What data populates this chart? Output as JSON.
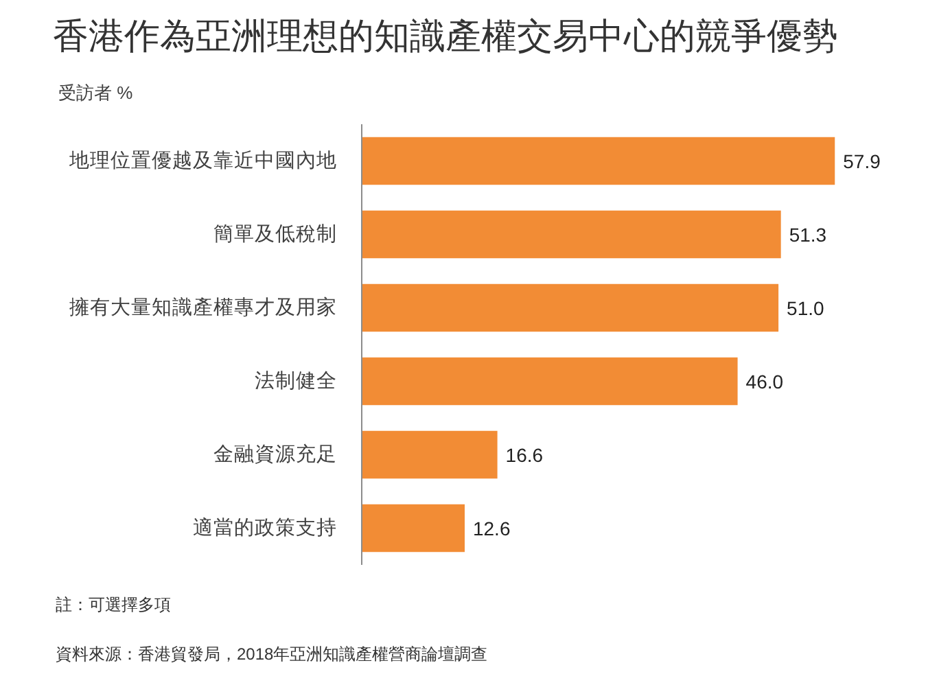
{
  "chart_data": {
    "type": "bar",
    "orientation": "horizontal",
    "title": "香港作為亞洲理想的知識產權交易中心的競爭優勢",
    "subtitle": "受訪者 %",
    "categories": [
      "地理位置優越及靠近中國內地",
      "簡單及低稅制",
      "擁有大量知識產權專才及用家",
      "法制健全",
      "金融資源充足",
      "適當的政策支持"
    ],
    "values": [
      57.9,
      51.3,
      51.0,
      46.0,
      16.6,
      12.6
    ],
    "value_labels": [
      "57.9",
      "51.3",
      "51.0",
      "46.0",
      "16.6",
      "12.6"
    ],
    "color": "#f28c35",
    "tick_labels": "y",
    "annotations": [
      "註：可選擇多項",
      "資料來源：香港貿發局，2018年亞洲知識產權營商論壇調查"
    ]
  }
}
